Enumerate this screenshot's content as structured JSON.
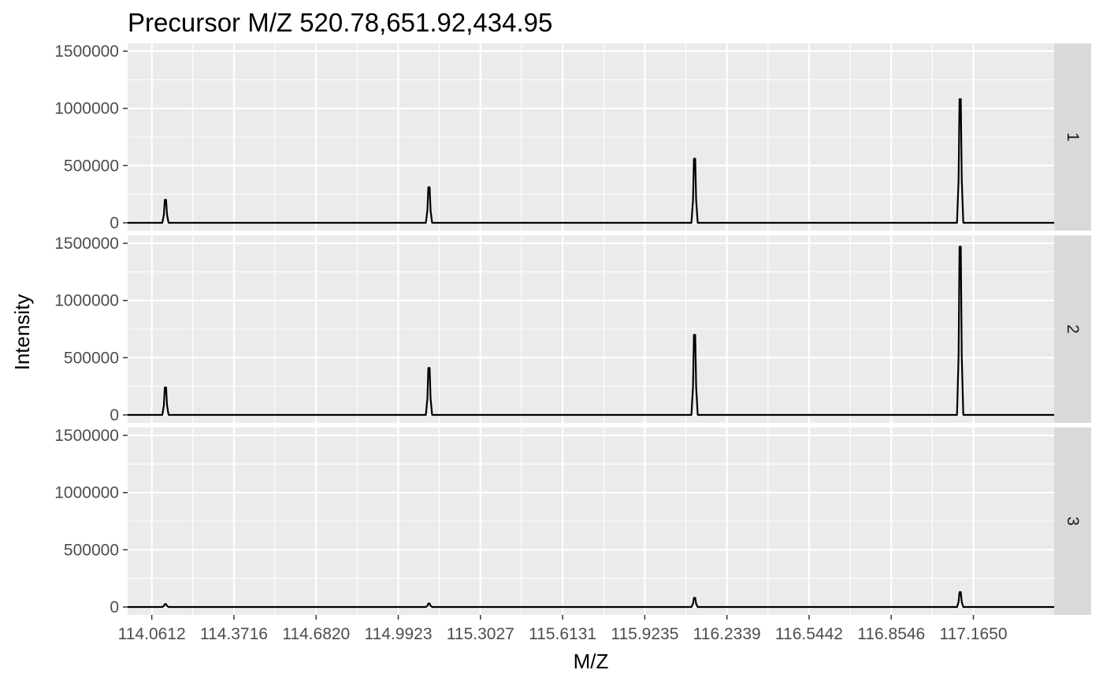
{
  "chart_data": {
    "type": "line",
    "title": "Precursor M/Z 520.78,651.92,434.95",
    "xlabel": "M/Z",
    "ylabel": "Intensity",
    "xlim": [
      113.97,
      117.47
    ],
    "ylim": [
      0,
      1500000
    ],
    "x_ticks": [
      "114.0612",
      "114.3716",
      "114.6820",
      "114.9923",
      "115.3027",
      "115.6131",
      "115.9235",
      "116.2339",
      "116.5442",
      "116.8546",
      "117.1650"
    ],
    "y_ticks": [
      "0",
      "500000",
      "1000000",
      "1500000"
    ],
    "grid": true,
    "legend": "none",
    "facets": [
      {
        "label": "1",
        "peaks": [
          {
            "mz": 114.1128,
            "intensity": 200000
          },
          {
            "mz": 115.1083,
            "intensity": 310000
          },
          {
            "mz": 116.1117,
            "intensity": 560000
          },
          {
            "mz": 117.115,
            "intensity": 1080000
          }
        ]
      },
      {
        "label": "2",
        "peaks": [
          {
            "mz": 114.1128,
            "intensity": 240000
          },
          {
            "mz": 115.1083,
            "intensity": 410000
          },
          {
            "mz": 116.1117,
            "intensity": 700000
          },
          {
            "mz": 117.115,
            "intensity": 1470000
          }
        ]
      },
      {
        "label": "3",
        "peaks": [
          {
            "mz": 114.1128,
            "intensity": 25000
          },
          {
            "mz": 115.1083,
            "intensity": 30000
          },
          {
            "mz": 116.1117,
            "intensity": 80000
          },
          {
            "mz": 117.115,
            "intensity": 130000
          }
        ]
      }
    ],
    "colors": {
      "panel_bg": "#ebebeb",
      "strip_bg": "#d9d9d9",
      "grid": "#ffffff",
      "line": "#000000",
      "tick_text": "#4d4d4d"
    }
  }
}
